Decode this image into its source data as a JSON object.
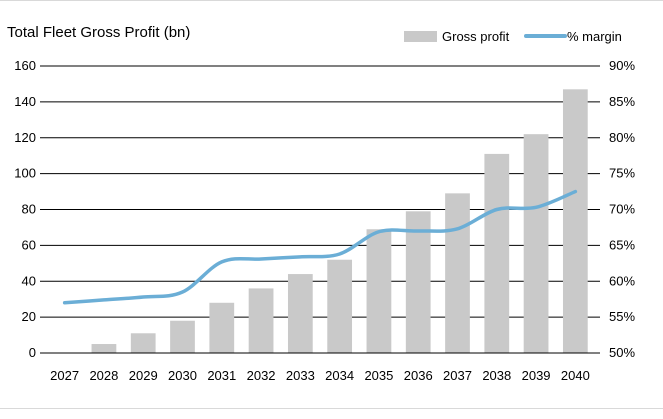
{
  "colors": {
    "bar": "#c9c9c9",
    "line": "#6baed6",
    "grid": "#000000",
    "text": "#000000",
    "frame": "#d9d9d9"
  },
  "chart_data": {
    "type": "bar",
    "title": "Total Fleet Gross Profit (bn)",
    "categories": [
      "2027",
      "2028",
      "2029",
      "2030",
      "2031",
      "2032",
      "2033",
      "2034",
      "2035",
      "2036",
      "2037",
      "2038",
      "2039",
      "2040"
    ],
    "series": [
      {
        "name": "Gross profit",
        "type": "bar",
        "axis": "left",
        "values": [
          0,
          5,
          11,
          18,
          28,
          36,
          44,
          52,
          69,
          79,
          89,
          111,
          122,
          147
        ]
      },
      {
        "name": "% margin",
        "type": "line",
        "axis": "right",
        "values": [
          57.0,
          57.4,
          57.8,
          58.5,
          62.7,
          63.1,
          63.4,
          63.8,
          66.9,
          67.0,
          67.3,
          70.0,
          70.3,
          72.5
        ]
      }
    ],
    "y_left": {
      "min": 0,
      "max": 160,
      "ticks": [
        0,
        20,
        40,
        60,
        80,
        100,
        120,
        140,
        160
      ],
      "tick_labels": [
        "0",
        "20",
        "40",
        "60",
        "80",
        "100",
        "120",
        "140",
        "160"
      ]
    },
    "y_right": {
      "min": 50,
      "max": 90,
      "ticks": [
        50,
        55,
        60,
        65,
        70,
        75,
        80,
        85,
        90
      ],
      "tick_labels": [
        "50%",
        "55%",
        "60%",
        "65%",
        "70%",
        "75%",
        "80%",
        "85%",
        "90%"
      ]
    },
    "grid": true,
    "legend_position": "top-right"
  }
}
